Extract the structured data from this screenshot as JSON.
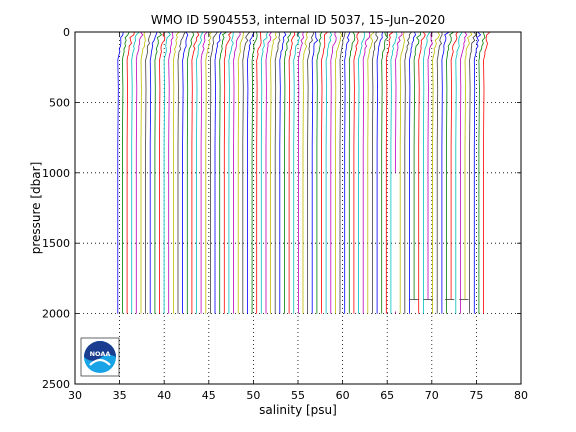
{
  "chart_data": {
    "type": "line",
    "title": "WMO ID 5904553, internal ID 5037, 15–Jun–2020",
    "xlabel": "salinity [psu]",
    "ylabel": "pressure [dbar]",
    "xlim": [
      30,
      80
    ],
    "ylim": [
      0,
      2500
    ],
    "y_reversed": true,
    "xticks": [
      30,
      35,
      40,
      45,
      50,
      55,
      60,
      65,
      70,
      75,
      80
    ],
    "yticks": [
      0,
      500,
      1000,
      1500,
      2000,
      2500
    ],
    "grid": true,
    "offset_note": "profiles horizontally offset",
    "profiles": {
      "count": 80,
      "first_deep_salinity": 34.8,
      "last_deep_salinity": 75.8,
      "surface_salinity_anomaly": 0.6,
      "surface_layer_depth": 200,
      "max_pressure": 2000,
      "truncated_profiles": [
        {
          "deep_salinity": 68.0,
          "max_pressure": 1900
        },
        {
          "deep_salinity": 69.6,
          "max_pressure": 1900
        },
        {
          "deep_salinity": 72.0,
          "max_pressure": 1900
        },
        {
          "deep_salinity": 73.6,
          "max_pressure": 1900
        }
      ],
      "gap_profiles": [
        {
          "deep_salinity": 66.0,
          "gap_from": 1000,
          "gap_to": 2000
        }
      ]
    },
    "colors": [
      "#0000ff",
      "#008000",
      "#ff0000",
      "#00bfbf",
      "#bf00bf",
      "#bfbf00",
      "#404040"
    ]
  },
  "logo": {
    "text": "NOAA",
    "colors": {
      "dark": "#1a3d8f",
      "light": "#17a3e6"
    }
  }
}
